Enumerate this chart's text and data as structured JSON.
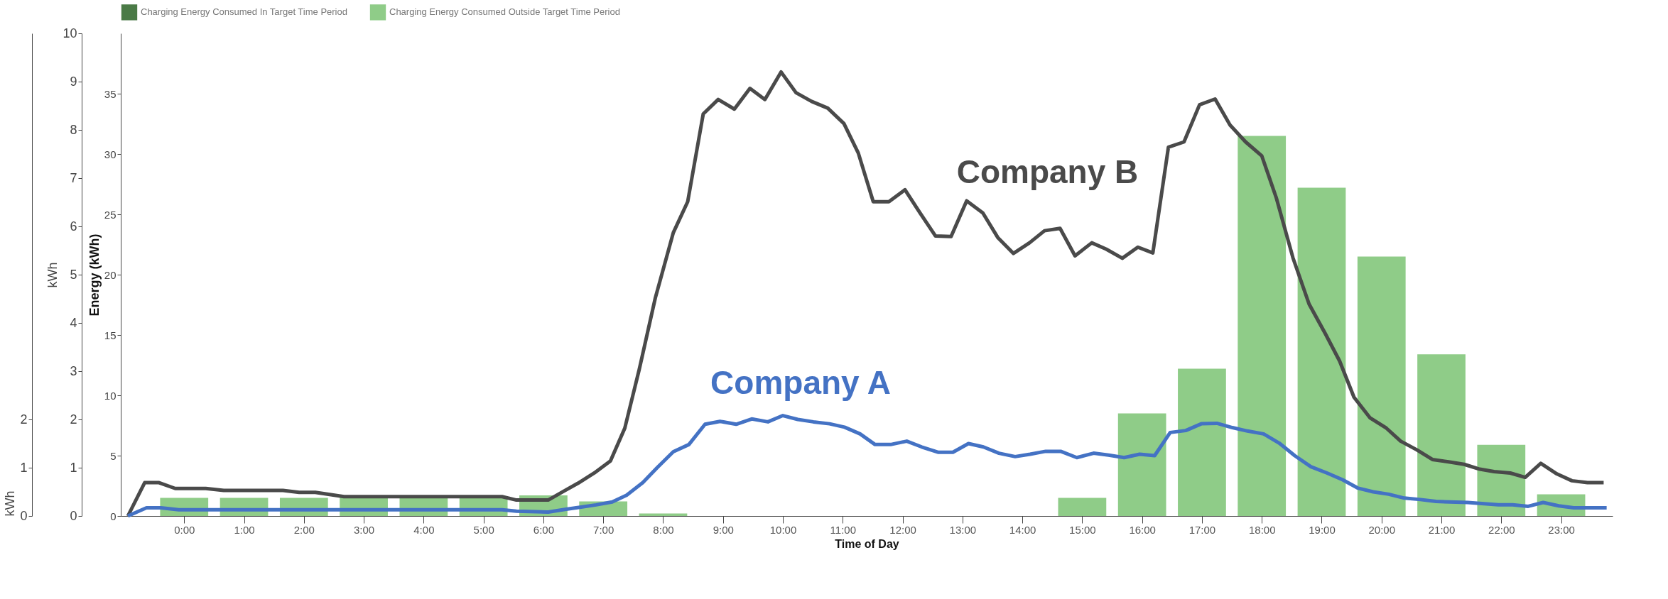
{
  "chart_data": {
    "type": "bar",
    "xlabel": "Time of Day",
    "ylabel": "kWh",
    "y2label": "Energy (kWh)",
    "y3label": "kWh",
    "xlim": [
      -1,
      23.8
    ],
    "xticks": [
      {
        "value": 0,
        "label": "0:00"
      },
      {
        "value": 1,
        "label": "1:00"
      },
      {
        "value": 2,
        "label": "2:00"
      },
      {
        "value": 3,
        "label": "3:00"
      },
      {
        "value": 4,
        "label": "4:00"
      },
      {
        "value": 5,
        "label": "5:00"
      },
      {
        "value": 6,
        "label": "6:00"
      },
      {
        "value": 7,
        "label": "7:00"
      },
      {
        "value": 8,
        "label": "8:00"
      },
      {
        "value": 9,
        "label": "9:00"
      },
      {
        "value": 10,
        "label": "10:00"
      },
      {
        "value": 11,
        "label": "11:00"
      },
      {
        "value": 12,
        "label": "12:00"
      },
      {
        "value": 13,
        "label": "13:00"
      },
      {
        "value": 14,
        "label": "14:00"
      },
      {
        "value": 15,
        "label": "15:00"
      },
      {
        "value": 16,
        "label": "16:00"
      },
      {
        "value": 17,
        "label": "17:00"
      },
      {
        "value": 18,
        "label": "18:00"
      },
      {
        "value": 19,
        "label": "19:00"
      },
      {
        "value": 20,
        "label": "20:00"
      },
      {
        "value": 21,
        "label": "21:00"
      },
      {
        "value": 22,
        "label": "22:00"
      },
      {
        "value": 23,
        "label": "23:00"
      }
    ],
    "ylim": [
      0,
      10
    ],
    "yticks": [
      0,
      1,
      2,
      3,
      4,
      5,
      6,
      7,
      8,
      9,
      10
    ],
    "y2lim": [
      0,
      40
    ],
    "y2ticks": [
      0,
      5,
      10,
      15,
      20,
      25,
      30,
      35
    ],
    "y3lim": [
      0,
      10
    ],
    "y3ticks": [
      0,
      1,
      2
    ],
    "legend": "top",
    "x": [
      0,
      1,
      2,
      3,
      4,
      5,
      6,
      7,
      8,
      9,
      10,
      11,
      12,
      13,
      14,
      15,
      16,
      17,
      18,
      19,
      20,
      21,
      22,
      23
    ],
    "series": [
      {
        "name": "Charging Energy Consumed In Target Time Period",
        "axis": "y2",
        "color": "#4a7a46",
        "values": [
          null,
          null,
          null,
          null,
          null,
          null,
          null,
          null,
          null,
          null,
          null,
          null,
          null,
          null,
          null,
          null,
          null,
          null,
          null,
          null,
          null,
          null,
          null,
          null
        ]
      },
      {
        "name": "Charging Energy Consumed Outside Target Time Period",
        "axis": "y2",
        "color": "#8fcc88",
        "values": [
          1.5,
          1.5,
          1.5,
          1.6,
          1.6,
          1.6,
          1.7,
          1.2,
          0.2,
          null,
          null,
          null,
          null,
          null,
          null,
          1.5,
          8.5,
          12.2,
          31.5,
          27.2,
          21.5,
          13.4,
          5.9,
          1.8
        ]
      },
      {
        "name": "Company B",
        "type": "line",
        "axis": "y",
        "color": "#4a4a4a",
        "x": [
          -0.94,
          -0.66,
          -0.42,
          -0.15,
          0.36,
          0.66,
          1.65,
          1.92,
          2.19,
          2.67,
          5.31,
          5.55,
          6.08,
          6.35,
          6.58,
          6.85,
          7.12,
          7.36,
          7.6,
          7.87,
          8.17,
          8.41,
          8.67,
          8.92,
          9.19,
          9.45,
          9.7,
          9.97,
          10.22,
          10.48,
          10.75,
          11.02,
          11.26,
          11.51,
          11.77,
          12.04,
          12.29,
          12.55,
          12.81,
          13.07,
          13.34,
          13.59,
          13.85,
          14.12,
          14.37,
          14.63,
          14.88,
          15.16,
          15.4,
          15.67,
          15.93,
          16.18,
          16.44,
          16.7,
          16.96,
          17.22,
          17.47,
          17.73,
          18.0,
          18.24,
          18.52,
          18.79,
          19.06,
          19.3,
          19.54,
          19.81,
          20.08,
          20.32,
          20.59,
          20.85,
          21.12,
          21.38,
          21.64,
          21.88,
          22.15,
          22.4,
          22.66,
          22.93,
          23.18,
          23.44,
          23.71
        ],
        "values": [
          0,
          0.69,
          0.69,
          0.57,
          0.57,
          0.53,
          0.53,
          0.49,
          0.49,
          0.4,
          0.4,
          0.33,
          0.33,
          0.52,
          0.68,
          0.89,
          1.14,
          1.82,
          3.03,
          4.52,
          5.87,
          6.51,
          8.33,
          8.63,
          8.43,
          8.86,
          8.63,
          9.2,
          8.77,
          8.59,
          8.45,
          8.13,
          7.52,
          6.51,
          6.51,
          6.76,
          6.28,
          5.8,
          5.79,
          6.53,
          6.28,
          5.77,
          5.44,
          5.66,
          5.91,
          5.96,
          5.39,
          5.66,
          5.53,
          5.34,
          5.57,
          5.45,
          7.64,
          7.75,
          8.52,
          8.64,
          8.1,
          7.75,
          7.46,
          6.6,
          5.35,
          4.39,
          3.78,
          3.21,
          2.46,
          2.03,
          1.82,
          1.55,
          1.37,
          1.17,
          1.12,
          1.07,
          0.97,
          0.92,
          0.89,
          0.8,
          1.09,
          0.87,
          0.73,
          0.69,
          0.69
        ]
      },
      {
        "name": "Company A",
        "type": "line",
        "axis": "y3",
        "color": "#4472c4",
        "x": [
          -0.94,
          -0.63,
          -0.39,
          -0.09,
          5.31,
          5.55,
          6.08,
          6.38,
          6.61,
          6.88,
          7.15,
          7.39,
          7.66,
          7.9,
          8.17,
          8.43,
          8.7,
          8.95,
          9.22,
          9.48,
          9.75,
          10.0,
          10.25,
          10.51,
          10.78,
          11.03,
          11.29,
          11.54,
          11.8,
          12.07,
          12.32,
          12.59,
          12.84,
          13.1,
          13.35,
          13.61,
          13.88,
          14.13,
          14.39,
          14.64,
          14.91,
          15.19,
          15.44,
          15.7,
          15.96,
          16.21,
          16.47,
          16.73,
          16.99,
          17.25,
          17.51,
          17.76,
          18.03,
          18.29,
          18.55,
          18.82,
          19.09,
          19.35,
          19.6,
          19.86,
          20.12,
          20.38,
          20.65,
          20.91,
          21.44,
          21.95,
          22.19,
          22.45,
          22.7,
          22.96,
          23.21,
          23.76
        ],
        "values": [
          0,
          0.17,
          0.17,
          0.13,
          0.13,
          0.1,
          0.08,
          0.14,
          0.18,
          0.23,
          0.29,
          0.43,
          0.69,
          1.0,
          1.33,
          1.48,
          1.9,
          1.96,
          1.9,
          2.01,
          1.95,
          2.08,
          2.0,
          1.95,
          1.91,
          1.84,
          1.7,
          1.48,
          1.48,
          1.55,
          1.43,
          1.32,
          1.32,
          1.5,
          1.43,
          1.3,
          1.23,
          1.28,
          1.34,
          1.34,
          1.21,
          1.3,
          1.26,
          1.21,
          1.28,
          1.25,
          1.73,
          1.77,
          1.91,
          1.92,
          1.83,
          1.76,
          1.7,
          1.51,
          1.25,
          1.02,
          0.89,
          0.75,
          0.58,
          0.5,
          0.45,
          0.37,
          0.34,
          0.3,
          0.28,
          0.23,
          0.23,
          0.2,
          0.28,
          0.21,
          0.17,
          0.17
        ]
      }
    ]
  }
}
